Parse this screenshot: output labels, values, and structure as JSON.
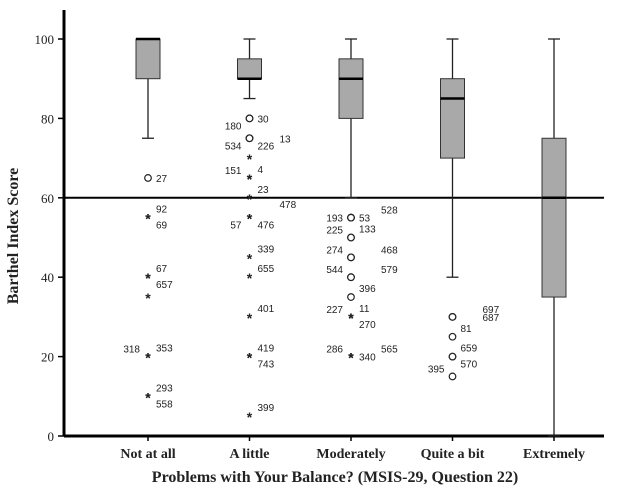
{
  "chart_data": {
    "type": "boxplot",
    "title": "",
    "xlabel": "Problems with Your Balance? (MSIS-29, Question 22)",
    "ylabel": "Barthel Index Score",
    "ylim": [
      0,
      105
    ],
    "yticks": [
      0,
      20,
      40,
      60,
      80,
      100
    ],
    "reference_line": 60,
    "categories": [
      "Not at all",
      "A little",
      "Moderately",
      "Quite a bit",
      "Extremely"
    ],
    "boxes": [
      {
        "category": "Not at all",
        "min": 75,
        "q1": 90,
        "median": 100,
        "q3": 100,
        "max": 100
      },
      {
        "category": "A little",
        "min": 85,
        "q1": 90,
        "median": 90,
        "q3": 95,
        "max": 100
      },
      {
        "category": "Moderately",
        "min": 60,
        "q1": 80,
        "median": 90,
        "q3": 95,
        "max": 100
      },
      {
        "category": "Quite a bit",
        "min": 40,
        "q1": 70,
        "median": 85,
        "q3": 90,
        "max": 100
      },
      {
        "category": "Extremely",
        "min": 0,
        "q1": 35,
        "median": 60,
        "q3": 75,
        "max": 100
      }
    ],
    "outliers": [
      {
        "category": "Not at all",
        "value": 65,
        "marker": "circle",
        "label": "27",
        "label_side": "right"
      },
      {
        "category": "Not at all",
        "value": 55,
        "marker": "star",
        "label": "92",
        "label_side": "right-up"
      },
      {
        "category": "Not at all",
        "value": 55,
        "marker": "star",
        "label": "69",
        "label_side": "right-down"
      },
      {
        "category": "Not at all",
        "value": 40,
        "marker": "star",
        "label": "67",
        "label_side": "right-up"
      },
      {
        "category": "Not at all",
        "value": 40,
        "marker": "star",
        "label": "657",
        "label_side": "right-down"
      },
      {
        "category": "Not at all",
        "value": 35,
        "marker": "star",
        "label": "",
        "label_side": "right"
      },
      {
        "category": "Not at all",
        "value": 20,
        "marker": "star",
        "label": "318",
        "label_side": "left-up"
      },
      {
        "category": "Not at all",
        "value": 20,
        "marker": "star",
        "label": "353",
        "label_side": "right-up"
      },
      {
        "category": "Not at all",
        "value": 10,
        "marker": "star",
        "label": "293",
        "label_side": "right-up"
      },
      {
        "category": "Not at all",
        "value": 10,
        "marker": "star",
        "label": "558",
        "label_side": "right-down"
      },
      {
        "category": "A little",
        "value": 80,
        "marker": "circle",
        "label": "180",
        "label_side": "left-down"
      },
      {
        "category": "A little",
        "value": 80,
        "marker": "circle",
        "label": "30",
        "label_side": "right"
      },
      {
        "category": "A little",
        "value": 75,
        "marker": "circle",
        "label": "13",
        "label_side": "right-far"
      },
      {
        "category": "A little",
        "value": 75,
        "marker": "circle",
        "label": "534",
        "label_side": "left-down"
      },
      {
        "category": "A little",
        "value": 75,
        "marker": "circle",
        "label": "226",
        "label_side": "right-down"
      },
      {
        "category": "A little",
        "value": 70,
        "marker": "star",
        "label": "",
        "label_side": "right"
      },
      {
        "category": "A little",
        "value": 65,
        "marker": "star",
        "label": "151",
        "label_side": "left-up"
      },
      {
        "category": "A little",
        "value": 65,
        "marker": "star",
        "label": "4",
        "label_side": "right-up"
      },
      {
        "category": "A little",
        "value": 60,
        "marker": "star",
        "label": "23",
        "label_side": "right-up"
      },
      {
        "category": "A little",
        "value": 60,
        "marker": "star",
        "label": "478",
        "label_side": "right-far-down"
      },
      {
        "category": "A little",
        "value": 55,
        "marker": "star",
        "label": "57",
        "label_side": "left-down"
      },
      {
        "category": "A little",
        "value": 55,
        "marker": "star",
        "label": "476",
        "label_side": "right-down"
      },
      {
        "category": "A little",
        "value": 45,
        "marker": "star",
        "label": "339",
        "label_side": "right-up"
      },
      {
        "category": "A little",
        "value": 40,
        "marker": "star",
        "label": "655",
        "label_side": "right-up"
      },
      {
        "category": "A little",
        "value": 30,
        "marker": "star",
        "label": "401",
        "label_side": "right-up"
      },
      {
        "category": "A little",
        "value": 20,
        "marker": "star",
        "label": "419",
        "label_side": "right-up"
      },
      {
        "category": "A little",
        "value": 20,
        "marker": "star",
        "label": "743",
        "label_side": "right-down"
      },
      {
        "category": "A little",
        "value": 5,
        "marker": "star",
        "label": "399",
        "label_side": "right-up"
      },
      {
        "category": "Moderately",
        "value": 55,
        "marker": "circle",
        "label": "193",
        "label_side": "left"
      },
      {
        "category": "Moderately",
        "value": 55,
        "marker": "circle",
        "label": "53",
        "label_side": "right"
      },
      {
        "category": "Moderately",
        "value": 55,
        "marker": "circle",
        "label": "528",
        "label_side": "right-far-up"
      },
      {
        "category": "Moderately",
        "value": 50,
        "marker": "circle",
        "label": "225",
        "label_side": "left-up"
      },
      {
        "category": "Moderately",
        "value": 50,
        "marker": "circle",
        "label": "133",
        "label_side": "right-up"
      },
      {
        "category": "Moderately",
        "value": 45,
        "marker": "circle",
        "label": "274",
        "label_side": "left-up"
      },
      {
        "category": "Moderately",
        "value": 45,
        "marker": "circle",
        "label": "468",
        "label_side": "right-far-up"
      },
      {
        "category": "Moderately",
        "value": 40,
        "marker": "circle",
        "label": "544",
        "label_side": "left-up"
      },
      {
        "category": "Moderately",
        "value": 40,
        "marker": "circle",
        "label": "579",
        "label_side": "right-far-up"
      },
      {
        "category": "Moderately",
        "value": 35,
        "marker": "circle",
        "label": "396",
        "label_side": "right-up"
      },
      {
        "category": "Moderately",
        "value": 30,
        "marker": "star",
        "label": "227",
        "label_side": "left-up"
      },
      {
        "category": "Moderately",
        "value": 30,
        "marker": "star",
        "label": "11",
        "label_side": "right-up"
      },
      {
        "category": "Moderately",
        "value": 30,
        "marker": "star",
        "label": "270",
        "label_side": "right-down"
      },
      {
        "category": "Moderately",
        "value": 20,
        "marker": "star",
        "label": "286",
        "label_side": "left-up"
      },
      {
        "category": "Moderately",
        "value": 20,
        "marker": "star",
        "label": "565",
        "label_side": "right-far-up"
      },
      {
        "category": "Moderately",
        "value": 20,
        "marker": "star",
        "label": "340",
        "label_side": "right"
      },
      {
        "category": "Quite a bit",
        "value": 30,
        "marker": "circle",
        "label": "697",
        "label_side": "right-far-up"
      },
      {
        "category": "Quite a bit",
        "value": 30,
        "marker": "circle",
        "label": "687",
        "label_side": "right-far"
      },
      {
        "category": "Quite a bit",
        "value": 25,
        "marker": "circle",
        "label": "81",
        "label_side": "right-up"
      },
      {
        "category": "Quite a bit",
        "value": 20,
        "marker": "circle",
        "label": "659",
        "label_side": "right-up"
      },
      {
        "category": "Quite a bit",
        "value": 20,
        "marker": "circle",
        "label": "570",
        "label_side": "right-down"
      },
      {
        "category": "Quite a bit",
        "value": 15,
        "marker": "circle",
        "label": "395",
        "label_side": "left-up"
      }
    ]
  }
}
